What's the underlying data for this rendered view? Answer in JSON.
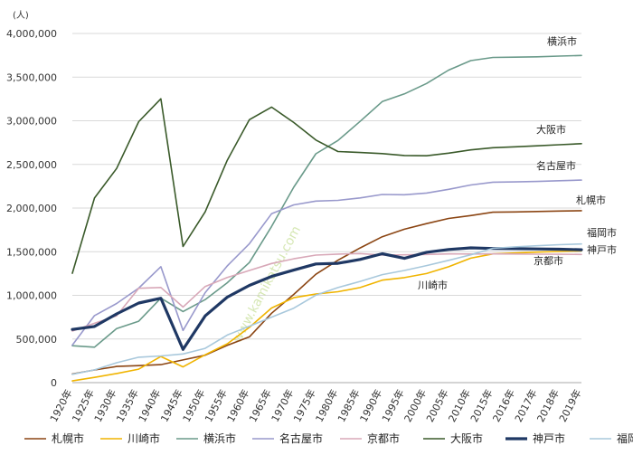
{
  "chart_data": {
    "type": "line",
    "unit_label": "(人)",
    "watermark": "www.kamikatsu.com",
    "ylim": [
      0,
      4000000
    ],
    "yticks": [
      "0",
      "500,000",
      "1,000,000",
      "1,500,000",
      "2,000,000",
      "2,500,000",
      "3,000,000",
      "3,500,000",
      "4,000,000"
    ],
    "categories": [
      "1920年",
      "1925年",
      "1930年",
      "1935年",
      "1940年",
      "1945年",
      "1950年",
      "1955年",
      "1960年",
      "1965年",
      "1970年",
      "1975年",
      "1980年",
      "1985年",
      "1990年",
      "1995年",
      "2000年",
      "2005年",
      "2010年",
      "2015年",
      "2016年",
      "2017年",
      "2018年",
      "2019年"
    ],
    "series": [
      {
        "name": "札幌市",
        "color": "#8b4513",
        "width": 1.6,
        "label": "札幌市",
        "label_dx": -6,
        "label_dy": -8,
        "values": [
          100000,
          145000,
          185000,
          195000,
          206000,
          260000,
          314000,
          427000,
          524000,
          795000,
          1010000,
          1241000,
          1402000,
          1543000,
          1672000,
          1757000,
          1822000,
          1881000,
          1914000,
          1952000,
          1955000,
          1961000,
          1966000,
          1970000
        ]
      },
      {
        "name": "川崎市",
        "color": "#f0b400",
        "width": 1.6,
        "label": "川崎市",
        "label_pos": [
          462,
          319
        ],
        "values": [
          20000,
          60000,
          105000,
          154000,
          300000,
          180000,
          319000,
          445000,
          633000,
          855000,
          973000,
          1015000,
          1041000,
          1089000,
          1174000,
          1203000,
          1250000,
          1327000,
          1426000,
          1475000,
          1485000,
          1495000,
          1503000,
          1510000
        ]
      },
      {
        "name": "横浜市",
        "color": "#6a9a8a",
        "width": 1.6,
        "label": "横浜市",
        "label_dx": -38,
        "label_dy": -12,
        "values": [
          423000,
          406000,
          620000,
          704000,
          968000,
          815000,
          951000,
          1144000,
          1376000,
          1789000,
          2238000,
          2622000,
          2774000,
          2993000,
          3220000,
          3308000,
          3427000,
          3580000,
          3689000,
          3725000,
          3728000,
          3733000,
          3741000,
          3748000
        ]
      },
      {
        "name": "名古屋市",
        "color": "#9999cc",
        "width": 1.6,
        "label": "名古屋市",
        "label_dx": -50,
        "label_dy": -12,
        "values": [
          430000,
          768000,
          907000,
          1083000,
          1328000,
          598000,
          1031000,
          1337000,
          1592000,
          1935000,
          2036000,
          2080000,
          2088000,
          2116000,
          2155000,
          2152000,
          2172000,
          2215000,
          2264000,
          2296000,
          2300000,
          2305000,
          2313000,
          2320000
        ]
      },
      {
        "name": "京都市",
        "color": "#d8a8b8",
        "width": 1.6,
        "label": "京都市",
        "label_pos": [
          590,
          292
        ],
        "values": [
          591000,
          680000,
          766000,
          1081000,
          1090000,
          866000,
          1102000,
          1204000,
          1285000,
          1365000,
          1419000,
          1461000,
          1473000,
          1479000,
          1461000,
          1464000,
          1468000,
          1475000,
          1474000,
          1475000,
          1474000,
          1472000,
          1470000,
          1468000
        ]
      },
      {
        "name": "大阪市",
        "color": "#3a5a2a",
        "width": 1.6,
        "label": "大阪市",
        "label_dx": -50,
        "label_dy": -12,
        "values": [
          1253000,
          2115000,
          2454000,
          2990000,
          3252000,
          1560000,
          1956000,
          2547000,
          3012000,
          3156000,
          2980000,
          2779000,
          2648000,
          2636000,
          2624000,
          2602000,
          2599000,
          2629000,
          2666000,
          2691000,
          2702000,
          2713000,
          2725000,
          2738000
        ]
      },
      {
        "name": "神戸市",
        "color": "#1f3864",
        "width": 3.2,
        "label": "神戸市",
        "label_pos": [
          649,
          280
        ],
        "values": [
          609000,
          644000,
          788000,
          912000,
          967000,
          380000,
          765000,
          979000,
          1114000,
          1217000,
          1289000,
          1360000,
          1367000,
          1411000,
          1477000,
          1424000,
          1493000,
          1525000,
          1544000,
          1537000,
          1535000,
          1532000,
          1528000,
          1522000
        ]
      },
      {
        "name": "福岡市",
        "color": "#a8c8dc",
        "width": 1.6,
        "label": "福岡市",
        "label_pos": [
          649,
          261
        ],
        "values": [
          95000,
          146000,
          228000,
          291000,
          306000,
          328000,
          393000,
          545000,
          647000,
          750000,
          853000,
          1002000,
          1089000,
          1160000,
          1237000,
          1285000,
          1341000,
          1401000,
          1464000,
          1539000,
          1555000,
          1568000,
          1580000,
          1589000
        ]
      }
    ]
  }
}
